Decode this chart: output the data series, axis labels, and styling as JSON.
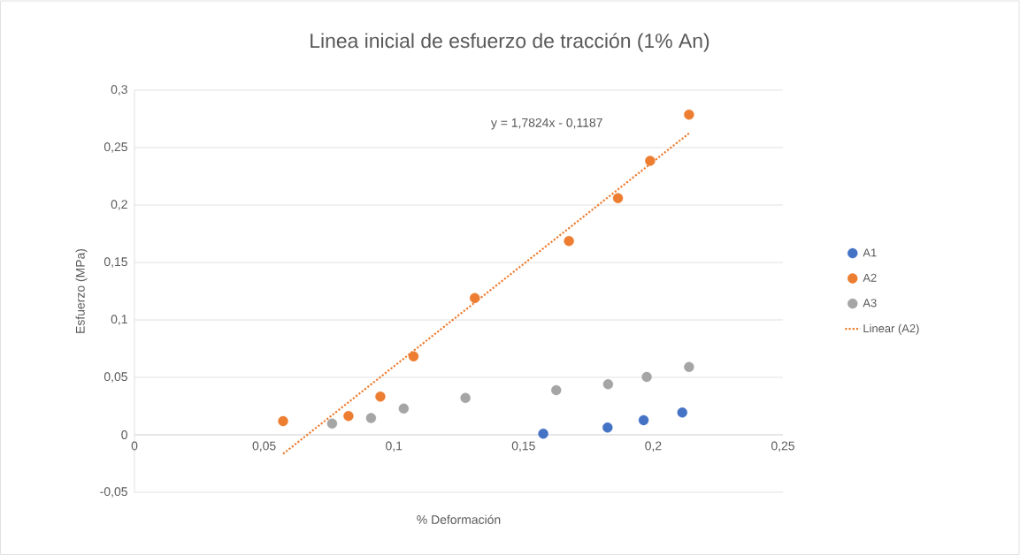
{
  "chart_data": {
    "type": "scatter",
    "title": "Linea inicial de esfuerzo de tracción (1% An)",
    "xlabel": "% Deformación",
    "ylabel": "Esfuerzo (MPa)",
    "xlim": [
      0,
      0.25
    ],
    "ylim": [
      -0.05,
      0.3
    ],
    "xticks": [
      0,
      {
        "value": 0.05,
        "label": "0,05"
      },
      {
        "value": 0.1,
        "label": "0,1"
      },
      {
        "value": 0.15,
        "label": "0,15"
      },
      {
        "value": 0.2,
        "label": "0,2"
      },
      {
        "value": 0.25,
        "label": "0,25"
      }
    ],
    "yticks": [
      {
        "value": -0.05,
        "label": "-0,05"
      },
      0,
      {
        "value": 0.05,
        "label": "0,05"
      },
      {
        "value": 0.1,
        "label": "0,1"
      },
      {
        "value": 0.15,
        "label": "0,15"
      },
      {
        "value": 0.2,
        "label": "0,2"
      },
      {
        "value": 0.25,
        "label": "0,25"
      },
      {
        "value": 0.3,
        "label": "0,3"
      }
    ],
    "grid": "y",
    "legend": "right",
    "marker": "circle",
    "annotations": [
      "y = 1,7824x - 0,1187"
    ],
    "series": [
      {
        "name": "A1",
        "color": "#4472c4",
        "x": [
          0.1576,
          0.1824,
          0.1963,
          0.2112
        ],
        "values": [
          0.001,
          0.0063,
          0.0127,
          0.0194
        ]
      },
      {
        "name": "A2",
        "color": "#ed7d31",
        "x": [
          0.0573,
          0.0825,
          0.0948,
          0.1076,
          0.1312,
          0.1675,
          0.1864,
          0.1988,
          0.2138
        ],
        "values": [
          0.0119,
          0.0164,
          0.0332,
          0.0683,
          0.119,
          0.1687,
          0.206,
          0.2384,
          0.2787
        ]
      },
      {
        "name": "A3",
        "color": "#a5a5a5",
        "x": [
          0.0762,
          0.0912,
          0.1038,
          0.1276,
          0.1626,
          0.1826,
          0.1975,
          0.2138
        ],
        "values": [
          0.0097,
          0.0146,
          0.0228,
          0.0321,
          0.0388,
          0.044,
          0.0504,
          0.059
        ]
      },
      {
        "name": "Linear (A2)",
        "type": "line",
        "line_style": "dotted",
        "marker": "none",
        "color": "#ed7d31",
        "x": [
          0.0573,
          0.2138
        ],
        "values": [
          -0.0166,
          0.2624
        ]
      }
    ]
  }
}
